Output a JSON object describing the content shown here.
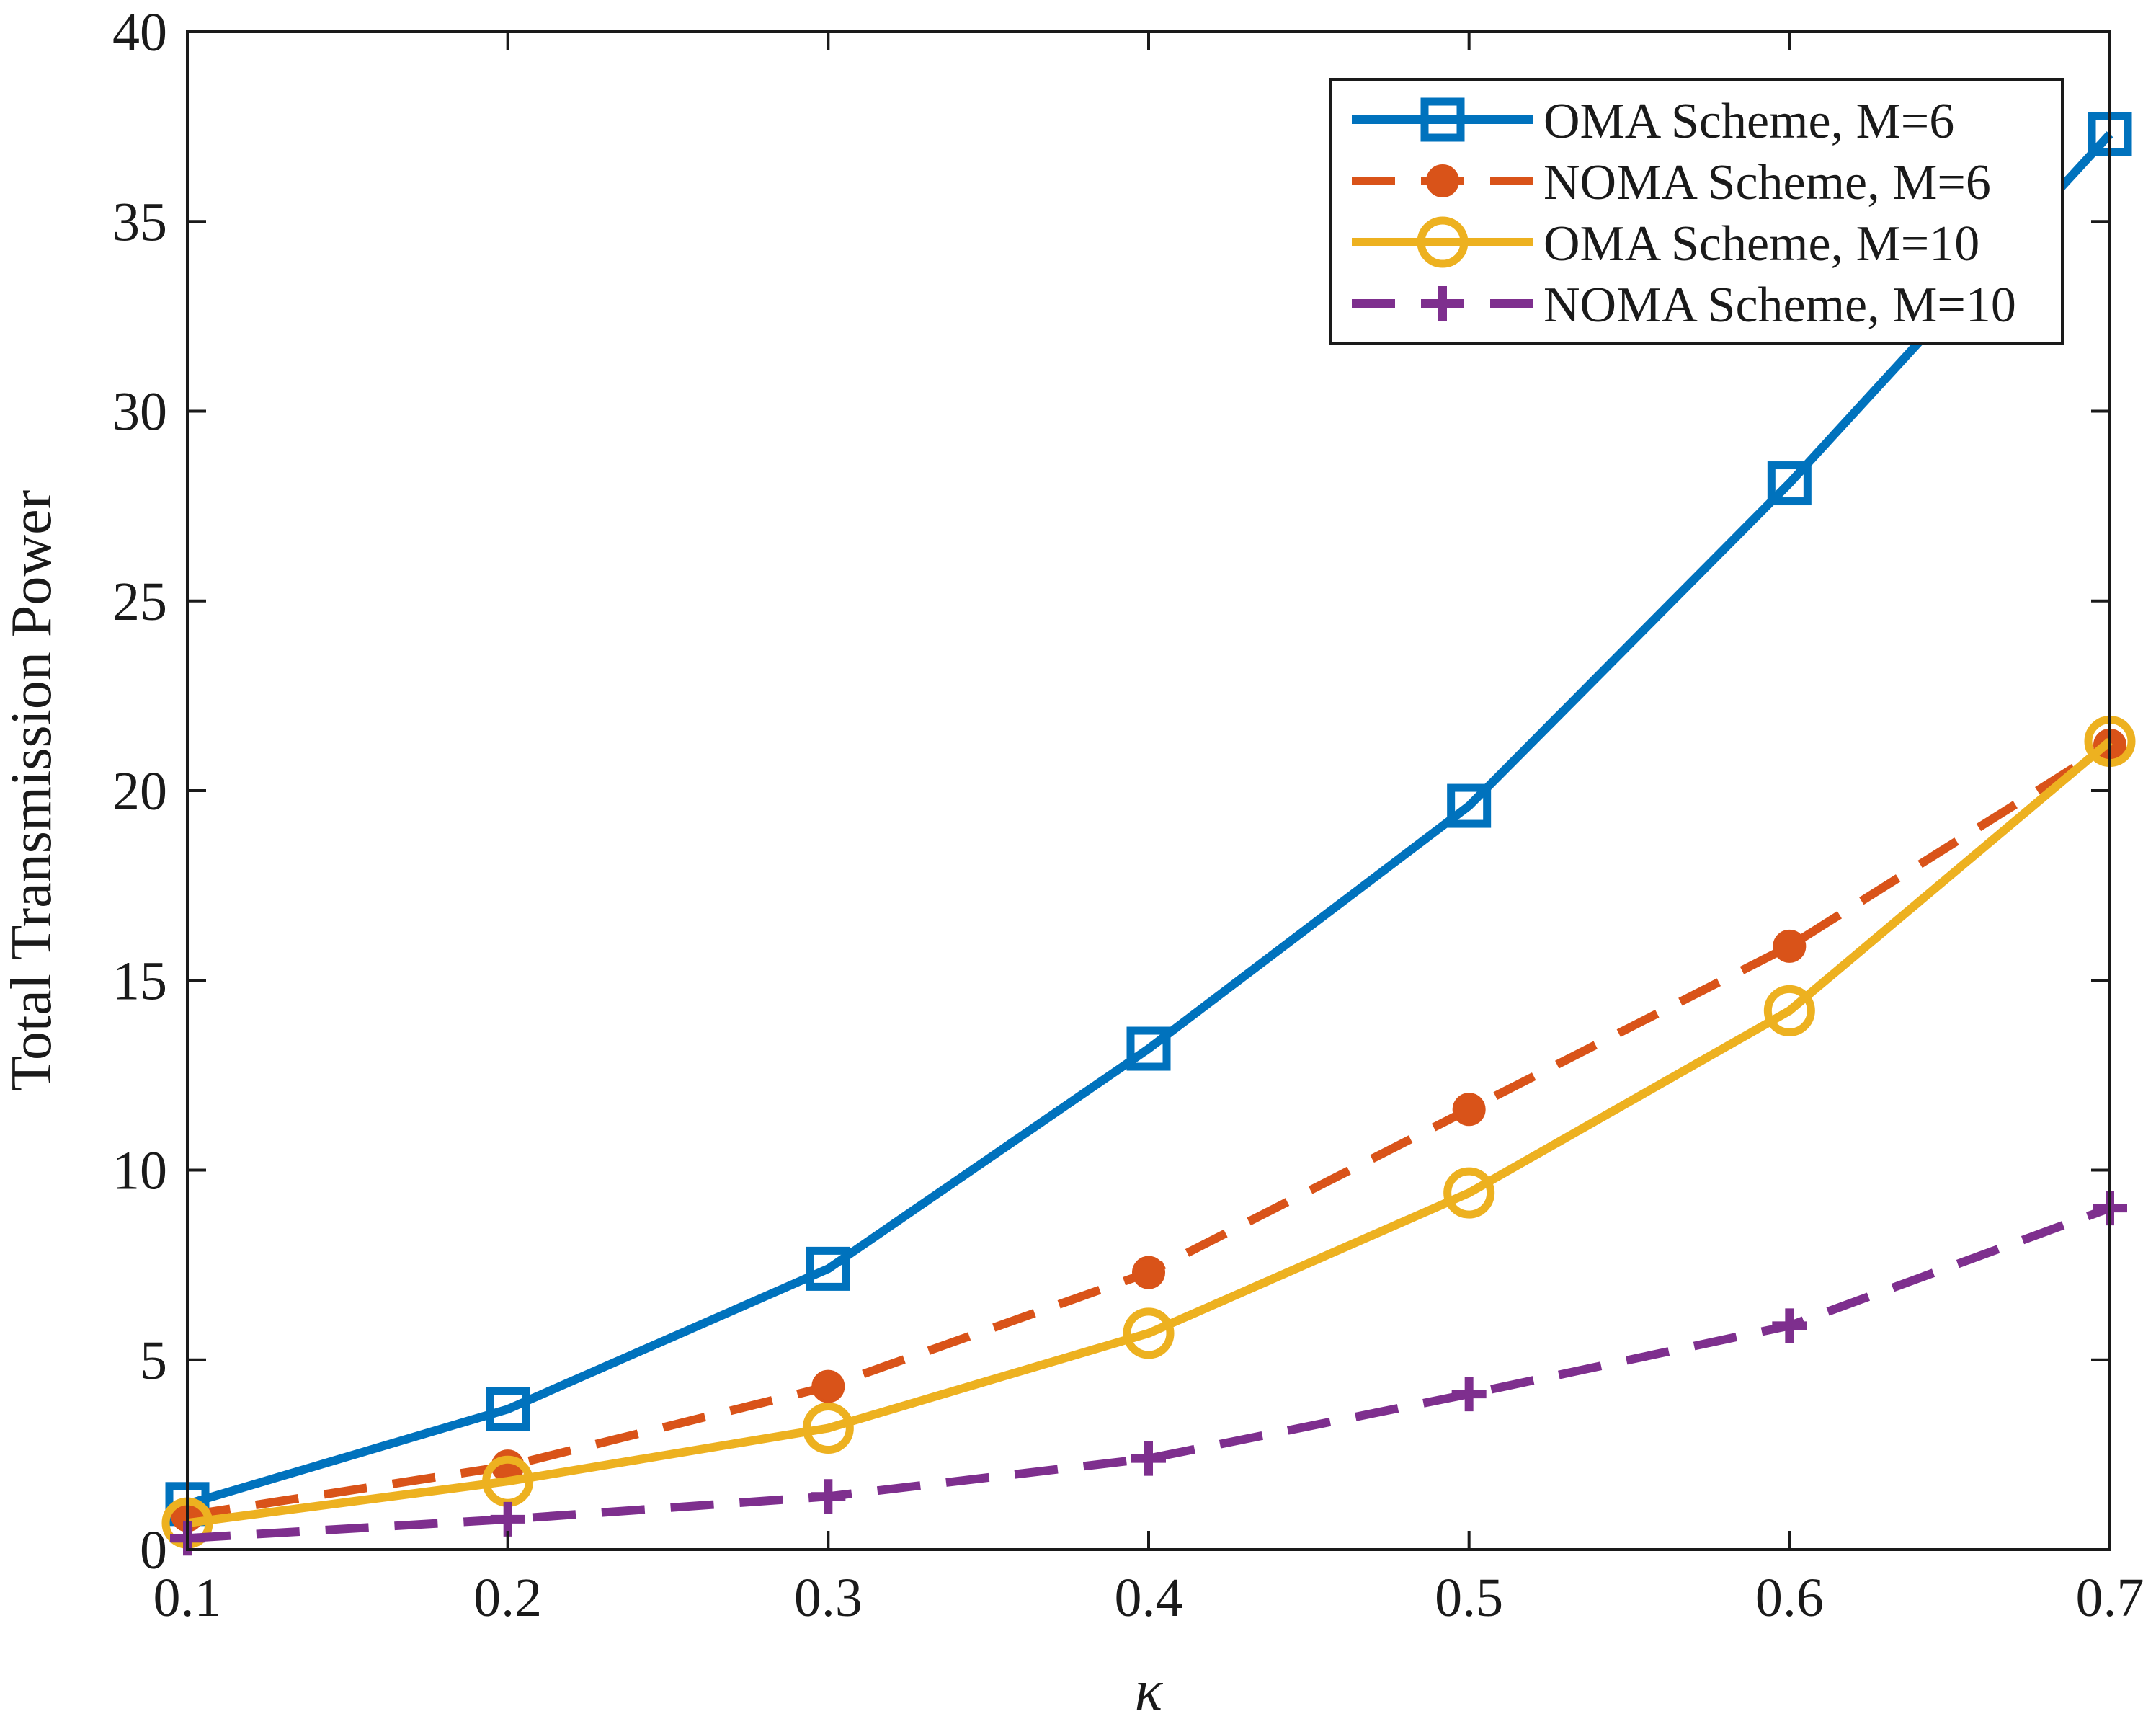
{
  "chart_data": {
    "type": "line",
    "title": "",
    "xlabel": "κ",
    "ylabel": "Total Transmission Power",
    "x": [
      0.1,
      0.2,
      0.3,
      0.4,
      0.5,
      0.6,
      0.7
    ],
    "xlim": [
      0.1,
      0.7
    ],
    "ylim": [
      0,
      40
    ],
    "xticks": [
      "0.1",
      "0.2",
      "0.3",
      "0.4",
      "0.5",
      "0.6",
      "0.7"
    ],
    "yticks": [
      "0",
      "5",
      "10",
      "15",
      "20",
      "25",
      "30",
      "35",
      "40"
    ],
    "grid": false,
    "legend_position": "top-right",
    "series": [
      {
        "name": "OMA Scheme, M=6",
        "values": [
          1.2,
          3.7,
          7.4,
          13.2,
          19.6,
          28.1,
          37.3
        ],
        "color": "#0072BD",
        "line": "solid",
        "marker": "square"
      },
      {
        "name": "NOMA Scheme, M=6",
        "values": [
          0.9,
          2.2,
          4.3,
          7.3,
          11.6,
          15.9,
          21.2
        ],
        "color": "#D95319",
        "line": "dashed",
        "marker": "filled-circle"
      },
      {
        "name": "OMA Scheme, M=10",
        "values": [
          0.7,
          1.8,
          3.2,
          5.7,
          9.4,
          14.2,
          21.3
        ],
        "color": "#EDB120",
        "line": "solid",
        "marker": "circle"
      },
      {
        "name": "NOMA Scheme, M=10",
        "values": [
          0.3,
          0.8,
          1.4,
          2.4,
          4.1,
          5.9,
          9.0
        ],
        "color": "#7E2F8E",
        "line": "dashed",
        "marker": "plus"
      }
    ]
  }
}
